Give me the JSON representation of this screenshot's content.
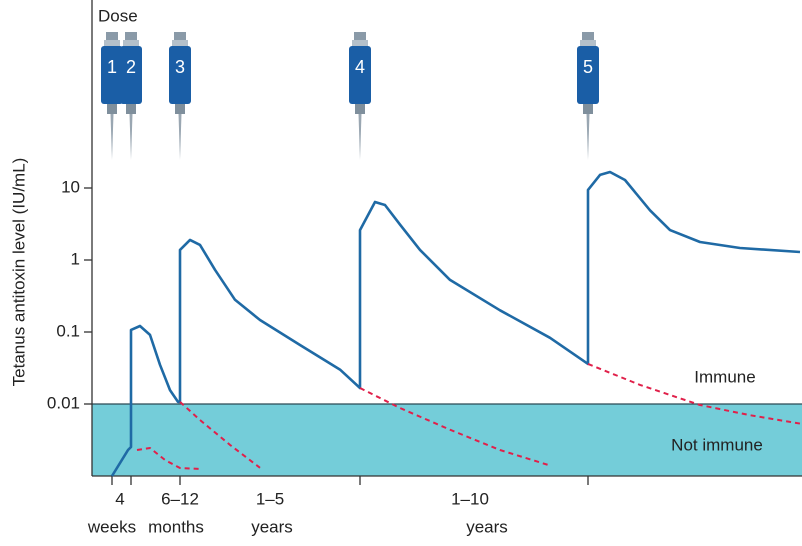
{
  "chart_data": {
    "type": "line",
    "title": "Dose",
    "y_label": "Tetanus antitoxin level (IU/mL)",
    "log_y": true,
    "ylim": [
      0.001,
      1000
    ],
    "yticks": [
      0.01,
      0.1,
      1,
      10
    ],
    "xlim": [
      0,
      710
    ],
    "doses": [
      "1",
      "2",
      "3",
      "4",
      "5"
    ],
    "dose_times": [
      20,
      39,
      88,
      268,
      496
    ],
    "periods": [
      {
        "label": "4",
        "unit": "weeks"
      },
      {
        "label": "6–12",
        "unit": "months"
      },
      {
        "label": "1–5",
        "unit": "years"
      },
      {
        "label": "1–10",
        "unit": "years"
      }
    ],
    "threshold": 0.01,
    "region_color": "#74cdd9",
    "syringe_color": "#1a5ea6",
    "immune_label": "Immune",
    "not_immune_label": "Not immune",
    "series": [
      {
        "color": "#1f6aa5",
        "style": "solid",
        "x": [
          20,
          36,
          39,
          39,
          48,
          58,
          68,
          78,
          86,
          88,
          88,
          98,
          108,
          123,
          143,
          168,
          208,
          248,
          268,
          268,
          283,
          293,
          308,
          328,
          358,
          408,
          458,
          496,
          496,
          508,
          518,
          533,
          558,
          578,
          608,
          648,
          708
        ],
        "values": [
          0.001,
          0.0023,
          0.00253,
          0.107,
          0.121,
          0.091,
          0.035,
          0.0156,
          0.0107,
          0.0107,
          1.38,
          1.9,
          1.62,
          0.73,
          0.28,
          0.147,
          0.066,
          0.03,
          0.0167,
          2.6,
          6.4,
          5.8,
          3.1,
          1.38,
          0.53,
          0.2,
          0.083,
          0.036,
          9.4,
          15.2,
          16.7,
          12.9,
          4.9,
          2.6,
          1.78,
          1.47,
          1.29
        ]
      },
      {
        "color": "#e0204a",
        "style": "dashed",
        "x": [
          45,
          58,
          73,
          88,
          108
        ],
        "values": [
          0.0023,
          0.00245,
          0.00167,
          0.00129,
          0.00125
        ]
      },
      {
        "color": "#e0204a",
        "style": "dashed",
        "x": [
          88,
          108,
          138,
          168
        ],
        "values": [
          0.0107,
          0.006,
          0.0027,
          0.0013
        ]
      },
      {
        "color": "#e0204a",
        "style": "dashed",
        "x": [
          268,
          308,
          358,
          408,
          458
        ],
        "values": [
          0.0167,
          0.0088,
          0.0044,
          0.0023,
          0.0014
        ]
      },
      {
        "color": "#e0204a",
        "style": "dashed",
        "x": [
          496,
          548,
          608,
          658,
          710
        ],
        "values": [
          0.036,
          0.0184,
          0.0097,
          0.007,
          0.0053
        ]
      }
    ]
  }
}
